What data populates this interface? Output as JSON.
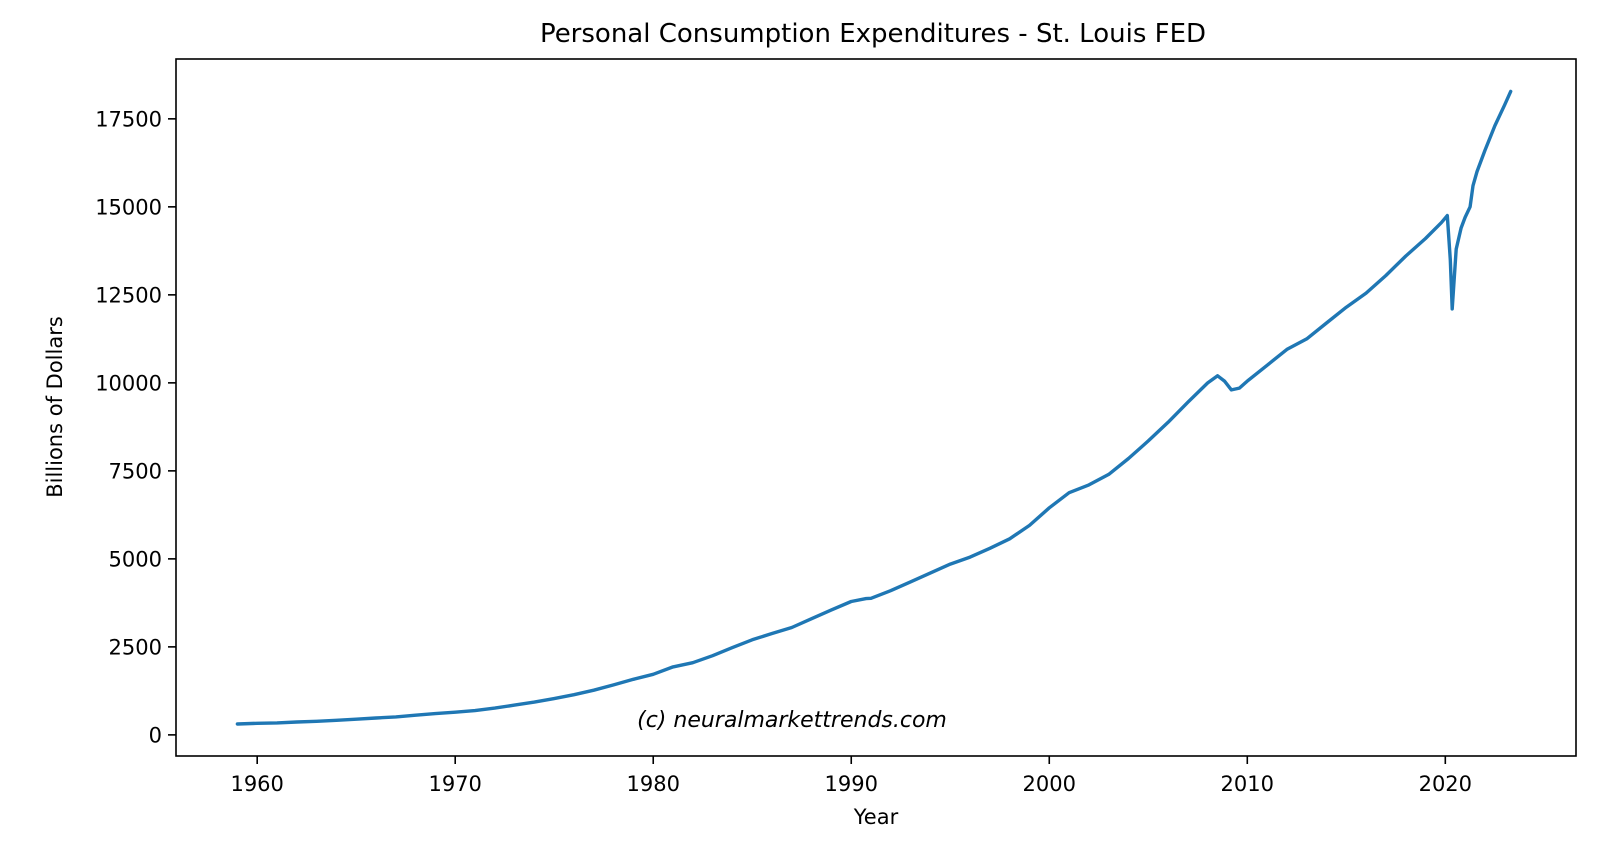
{
  "chart_data": {
    "type": "line",
    "title": "Personal Consumption Expenditures - St. Louis FED",
    "xlabel": "Year",
    "ylabel": "Billions of Dollars",
    "annotation": "(c) neuralmarkettrends.com",
    "xlim": [
      1955.9,
      2026.6
    ],
    "ylim": [
      -600,
      19200
    ],
    "xticks": [
      1960,
      1970,
      1980,
      1990,
      2000,
      2010,
      2020
    ],
    "yticks": [
      0,
      2500,
      5000,
      7500,
      10000,
      12500,
      15000,
      17500
    ],
    "grid": false,
    "legend": "none",
    "series": [
      {
        "color": "#1f77b4",
        "x": [
          1959.0,
          1960.0,
          1961.0,
          1962.0,
          1963.0,
          1964.0,
          1965.0,
          1966.0,
          1967.0,
          1968.0,
          1969.0,
          1970.0,
          1971.0,
          1972.0,
          1973.0,
          1974.0,
          1975.0,
          1976.0,
          1977.0,
          1978.0,
          1979.0,
          1980.0,
          1981.0,
          1982.0,
          1983.0,
          1984.0,
          1985.0,
          1986.0,
          1987.0,
          1988.0,
          1989.0,
          1990.0,
          1990.75,
          1991.0,
          1992.0,
          1993.0,
          1994.0,
          1995.0,
          1996.0,
          1997.0,
          1998.0,
          1999.0,
          2000.0,
          2001.0,
          2002.0,
          2003.0,
          2004.0,
          2005.0,
          2006.0,
          2007.0,
          2008.0,
          2008.5,
          2008.85,
          2009.2,
          2009.6,
          2010.0,
          2011.0,
          2012.0,
          2013.0,
          2014.0,
          2015.0,
          2016.0,
          2017.0,
          2018.0,
          2019.0,
          2019.8,
          2020.1,
          2020.25,
          2020.35,
          2020.55,
          2020.8,
          2021.0,
          2021.25,
          2021.4,
          2021.6,
          2022.0,
          2022.5,
          2023.0,
          2023.3
        ],
        "y": [
          310,
          330,
          340,
          365,
          385,
          415,
          445,
          480,
          510,
          560,
          605,
          645,
          690,
          760,
          845,
          930,
          1030,
          1140,
          1270,
          1420,
          1580,
          1720,
          1930,
          2050,
          2250,
          2480,
          2700,
          2880,
          3050,
          3300,
          3550,
          3790,
          3870,
          3880,
          4100,
          4350,
          4600,
          4850,
          5050,
          5300,
          5570,
          5950,
          6450,
          6880,
          7100,
          7400,
          7850,
          8350,
          8880,
          9450,
          10000,
          10200,
          10050,
          9800,
          9850,
          10050,
          10500,
          10950,
          11250,
          11700,
          12150,
          12550,
          13050,
          13600,
          14100,
          14550,
          14750,
          13500,
          12100,
          13800,
          14400,
          14700,
          15000,
          15600,
          16000,
          16600,
          17300,
          17900,
          18280
        ]
      }
    ]
  }
}
